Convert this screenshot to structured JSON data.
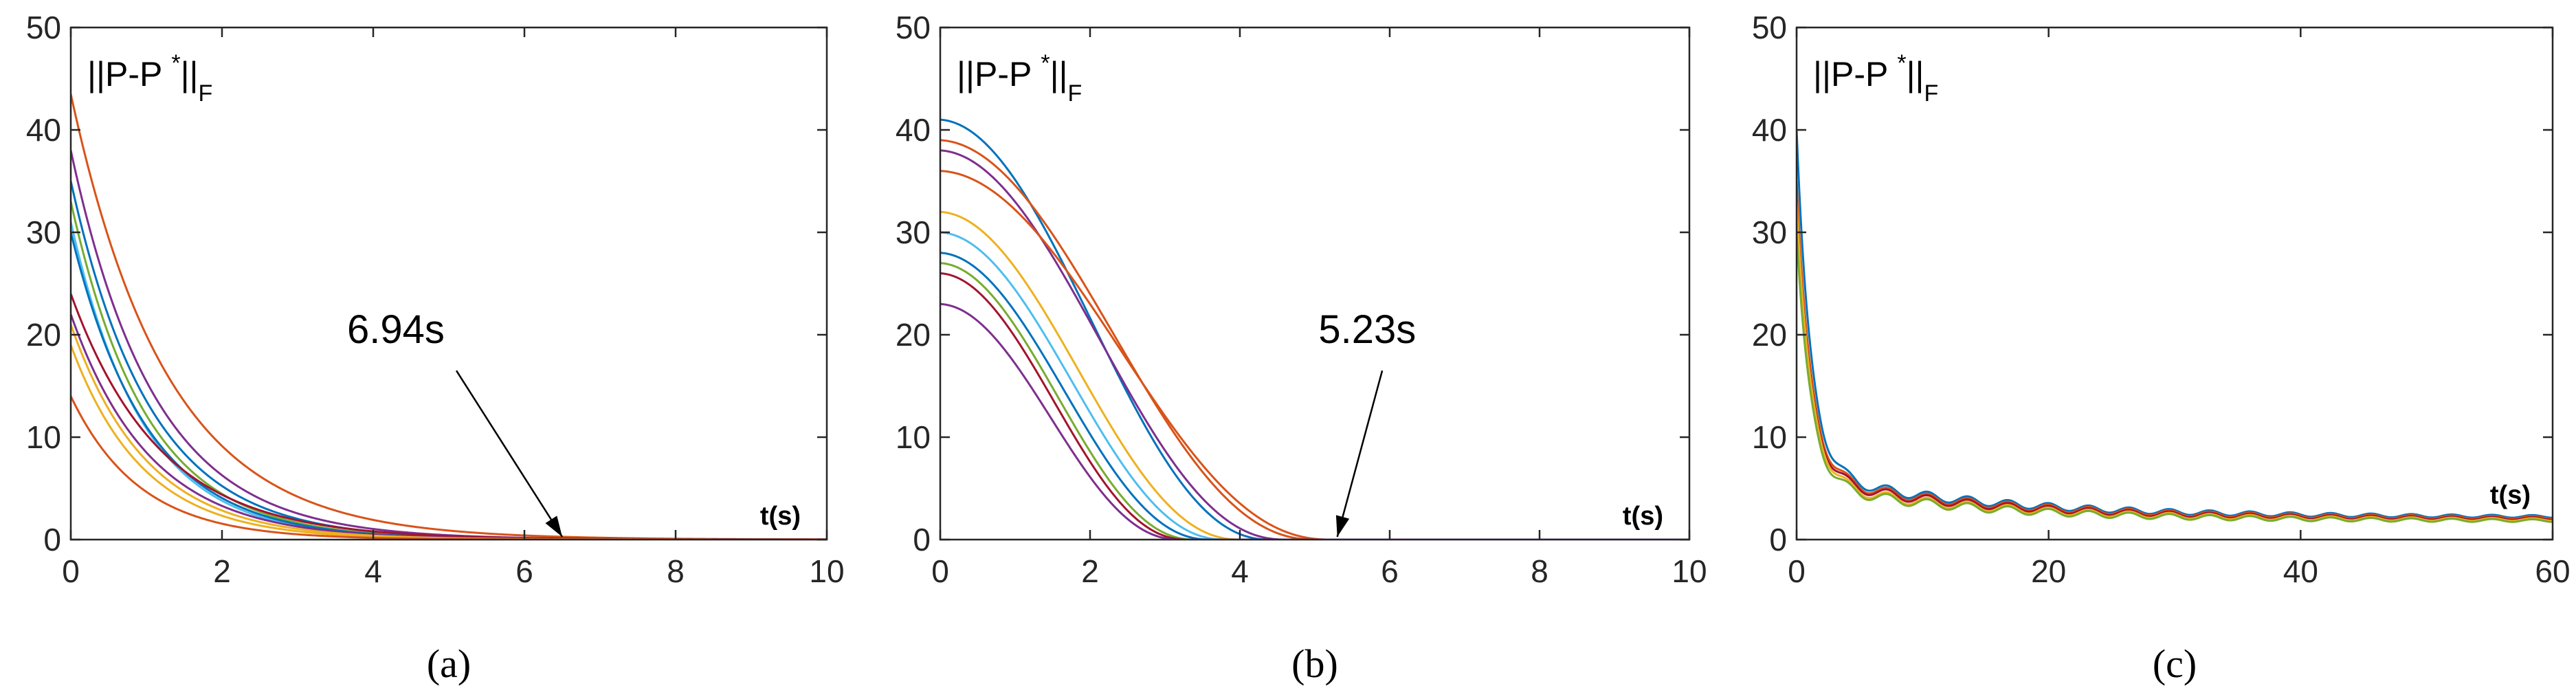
{
  "chart_data": [
    {
      "type": "line",
      "subplot_caption": "(a)",
      "ylabel_main": "||P-P",
      "ylabel_sup": "*",
      "ylabel_end": "||",
      "ylabel_sub": "F",
      "xlabel": "t(s)",
      "xlim": [
        0,
        10
      ],
      "ylim": [
        0,
        50
      ],
      "xticks": [
        0,
        2,
        4,
        6,
        8,
        10
      ],
      "yticks": [
        0,
        10,
        20,
        30,
        40,
        50
      ],
      "grid": false,
      "annotation": {
        "text": "6.94s",
        "arrow_target": [
          6.5,
          0
        ]
      },
      "series": [
        {
          "color": "#D95319",
          "initial": 43.5,
          "decay": 0.78,
          "shape": "exp"
        },
        {
          "color": "#7E2F8E",
          "initial": 38,
          "decay": 0.9,
          "shape": "exp"
        },
        {
          "color": "#0072BD",
          "initial": 35,
          "decay": 0.95,
          "shape": "exp"
        },
        {
          "color": "#77AC30",
          "initial": 33,
          "decay": 1.0,
          "shape": "exp"
        },
        {
          "color": "#4DBEEE",
          "initial": 31,
          "decay": 1.05,
          "shape": "exp"
        },
        {
          "color": "#0072BD",
          "initial": 30,
          "decay": 1.0,
          "shape": "exp"
        },
        {
          "color": "#A2142F",
          "initial": 24,
          "decay": 0.85,
          "shape": "exp"
        },
        {
          "color": "#7E2F8E",
          "initial": 22,
          "decay": 0.95,
          "shape": "exp"
        },
        {
          "color": "#EDB120",
          "initial": 21,
          "decay": 1.0,
          "shape": "exp"
        },
        {
          "color": "#EDB120",
          "initial": 19,
          "decay": 1.05,
          "shape": "exp"
        },
        {
          "color": "#D95319",
          "initial": 14,
          "decay": 1.1,
          "shape": "exp"
        }
      ]
    },
    {
      "type": "line",
      "subplot_caption": "(b)",
      "ylabel_main": "||P-P",
      "ylabel_sup": "*",
      "ylabel_end": "||",
      "ylabel_sub": "F",
      "xlabel": "t(s)",
      "xlim": [
        0,
        10
      ],
      "ylim": [
        0,
        50
      ],
      "xticks": [
        0,
        2,
        4,
        6,
        8,
        10
      ],
      "yticks": [
        0,
        10,
        20,
        30,
        40,
        50
      ],
      "grid": false,
      "annotation": {
        "text": "5.23s",
        "arrow_target": [
          5.3,
          0
        ]
      },
      "series": [
        {
          "color": "#0072BD",
          "initial": 41,
          "tend": 4.4,
          "shape": "smooth"
        },
        {
          "color": "#D95319",
          "initial": 39,
          "tend": 5.0,
          "shape": "smooth"
        },
        {
          "color": "#7E2F8E",
          "initial": 38,
          "tend": 4.6,
          "shape": "smooth"
        },
        {
          "color": "#D95319",
          "initial": 36,
          "tend": 5.2,
          "shape": "smooth"
        },
        {
          "color": "#EDB120",
          "initial": 32,
          "tend": 4.0,
          "shape": "smooth"
        },
        {
          "color": "#4DBEEE",
          "initial": 30,
          "tend": 3.8,
          "shape": "smooth"
        },
        {
          "color": "#0072BD",
          "initial": 28,
          "tend": 3.6,
          "shape": "smooth"
        },
        {
          "color": "#77AC30",
          "initial": 27,
          "tend": 3.4,
          "shape": "smooth"
        },
        {
          "color": "#A2142F",
          "initial": 26,
          "tend": 3.3,
          "shape": "smooth"
        },
        {
          "color": "#7E2F8E",
          "initial": 23,
          "tend": 3.2,
          "shape": "smooth"
        }
      ]
    },
    {
      "type": "line",
      "subplot_caption": "(c)",
      "ylabel_main": "||P-P",
      "ylabel_sup": "*",
      "ylabel_end": "||",
      "ylabel_sub": "F",
      "xlabel": "t(s)",
      "xlim": [
        0,
        60
      ],
      "ylim": [
        0,
        50
      ],
      "xticks": [
        0,
        20,
        40,
        60
      ],
      "yticks": [
        0,
        10,
        20,
        30,
        40,
        50
      ],
      "grid": false,
      "series": [
        {
          "color": "#0072BD",
          "initial": 40,
          "floor_start": 6.5,
          "floor_end": 2.2,
          "shape": "oscillating"
        },
        {
          "color": "#D95319",
          "initial": 35,
          "floor_start": 6.2,
          "floor_end": 2.1,
          "shape": "oscillating"
        },
        {
          "color": "#A2142F",
          "initial": 33,
          "floor_start": 6.0,
          "floor_end": 2.0,
          "shape": "oscillating"
        },
        {
          "color": "#EDB120",
          "initial": 33,
          "floor_start": 5.6,
          "floor_end": 1.9,
          "shape": "oscillating"
        },
        {
          "color": "#77AC30",
          "initial": 30,
          "floor_start": 5.4,
          "floor_end": 1.8,
          "shape": "oscillating"
        }
      ]
    }
  ]
}
